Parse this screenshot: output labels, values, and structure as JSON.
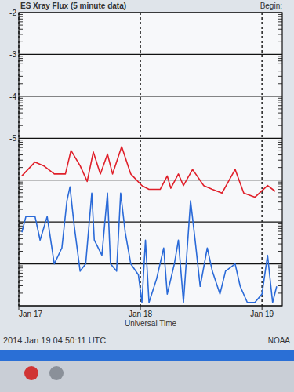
{
  "chart_data": {
    "type": "line",
    "title": "ES Xray Flux (5 minute data)",
    "subtitle": "Begin:",
    "x_label": "Universal Time",
    "footer": "2014 Jan 19 04:50:11 UTC",
    "source": "NOAA",
    "log": "y",
    "grid": true,
    "xlim": [
      0,
      52
    ],
    "xticks": [
      {
        "value": 0,
        "label": "Jan 17"
      },
      {
        "value": 24,
        "label": "Jan 18"
      },
      {
        "value": 48,
        "label": "Jan 19"
      }
    ],
    "ylim": [
      1e-09,
      0.01
    ],
    "yticks": [
      {
        "value": 0.01,
        "label": "-2"
      },
      {
        "value": 0.001,
        "label": "-3"
      },
      {
        "value": 0.0001,
        "label": "-4"
      },
      {
        "value": 1e-05,
        "label": "-5"
      },
      {
        "value": 1e-06,
        "label": null
      },
      {
        "value": 1e-07,
        "label": null
      },
      {
        "value": 1e-08,
        "label": null
      },
      {
        "value": 1e-09,
        "label": null
      }
    ],
    "series": [
      {
        "color": "#e0202a",
        "x": [
          0.6,
          3.2,
          4.9,
          7.0,
          9.2,
          10.3,
          12.1,
          13.5,
          14.7,
          16.1,
          17.5,
          18.5,
          20.3,
          22.1,
          24.3,
          25.7,
          27.9,
          29.3,
          30.0,
          31.5,
          32.5,
          34.3,
          36.5,
          38.2,
          40.1,
          42.7,
          44.4,
          46.6,
          49.1,
          50.6
        ],
        "values": [
          1.26e-06,
          2.7e-06,
          2.2e-06,
          1.4e-06,
          1.4e-06,
          5.1e-06,
          2.2e-06,
          9.3e-07,
          4.7e-06,
          1.4e-06,
          4.2e-06,
          1.4e-06,
          6.3e-06,
          1.4e-06,
          7.4e-07,
          6e-07,
          6e-07,
          1.26e-06,
          6.4e-07,
          1.4e-06,
          7.4e-07,
          1.8e-06,
          7.4e-07,
          6e-07,
          4.9e-07,
          1.8e-06,
          4.9e-07,
          3.9e-07,
          7.4e-07,
          5.4e-07
        ]
      },
      {
        "color": "#2a6ad8",
        "x": [
          0.6,
          1.4,
          3.2,
          4.2,
          5.6,
          7.0,
          8.5,
          9.5,
          10.1,
          10.9,
          12.1,
          13.2,
          14.4,
          14.9,
          16.4,
          17.5,
          18.1,
          19.3,
          20.1,
          21.0,
          22.1,
          23.6,
          24.3,
          25.0,
          25.7,
          27.2,
          28.6,
          29.3,
          30.7,
          31.5,
          32.5,
          33.9,
          34.8,
          35.8,
          37.2,
          38.2,
          39.7,
          40.8,
          42.7,
          43.7,
          45.1,
          46.6,
          48.0,
          49.1,
          50.1,
          50.9
        ],
        "values": [
          5.7e-08,
          1.35e-07,
          1.35e-07,
          3.7e-08,
          1.35e-07,
          1e-08,
          2.4e-08,
          3.2e-07,
          6.9e-07,
          8.8e-08,
          6.7e-09,
          1e-08,
          4.9e-07,
          3.7e-08,
          1.6e-08,
          4.9e-07,
          1e-08,
          6.7e-09,
          4.9e-07,
          5.7e-08,
          1e-08,
          5.5e-09,
          1.2e-09,
          3.7e-08,
          1.2e-09,
          4.4e-09,
          2.4e-08,
          1.9e-09,
          1e-08,
          3.7e-08,
          1.2e-09,
          3.2e-07,
          3.7e-08,
          2.9e-09,
          2.4e-08,
          6.7e-09,
          1.9e-09,
          6.7e-09,
          1e-08,
          2.9e-09,
          1.2e-09,
          1.2e-09,
          1.9e-09,
          1.6e-08,
          1.2e-09,
          2.9e-09
        ]
      }
    ]
  }
}
